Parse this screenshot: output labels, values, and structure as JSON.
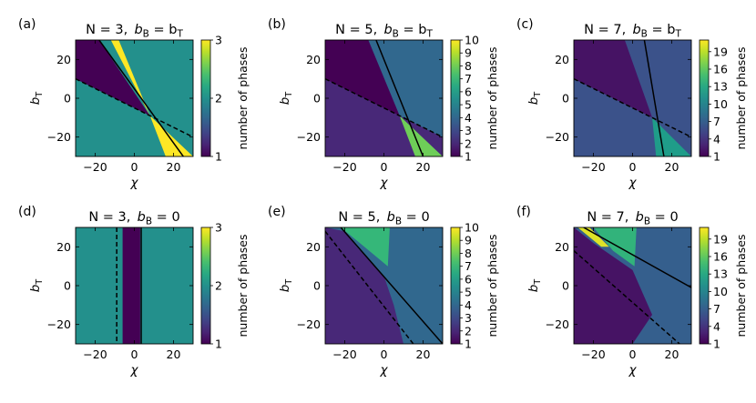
{
  "chart_data": [
    {
      "type": "heatmap",
      "panel_label": "(a)",
      "title": "N = 3,  b_B = b_T",
      "title_parts": {
        "n": "N = 3,",
        "b": "b",
        "sub1": "B",
        "eq": " = b",
        "sub2": "T"
      },
      "xlabel": "χ",
      "ylabel": "b",
      "ylabel_sub": "T",
      "xlim": [
        -30,
        30
      ],
      "ylim": [
        -30,
        30
      ],
      "xticks": [
        -20,
        0,
        20
      ],
      "yticks": [
        -20,
        0,
        20
      ],
      "colorbar": {
        "label": "number of phases",
        "min": 1,
        "max": 3,
        "ticks": [
          1,
          2,
          3
        ]
      },
      "background_value": 2,
      "regions": [
        {
          "value": 1,
          "polygon": [
            [
              -30,
              30
            ],
            [
              -18,
              30
            ],
            [
              8,
              -9
            ],
            [
              -30,
              10
            ]
          ]
        },
        {
          "value": 3,
          "polygon": [
            [
              -12,
              30
            ],
            [
              -8,
              30
            ],
            [
              8,
              -9
            ]
          ]
        },
        {
          "value": 3,
          "polygon": [
            [
              8,
              -9
            ],
            [
              16,
              -30
            ],
            [
              30,
              -30
            ]
          ]
        }
      ],
      "lines": [
        {
          "style": "solid",
          "points": [
            [
              -18,
              30
            ],
            [
              25,
              -30
            ]
          ]
        },
        {
          "style": "dashed",
          "points": [
            [
              -30,
              10
            ],
            [
              30,
              -20
            ]
          ]
        }
      ]
    },
    {
      "type": "heatmap",
      "panel_label": "(b)",
      "title": "N = 5,  b_B = b_T",
      "title_parts": {
        "n": "N = 5,",
        "b": "b",
        "sub1": "B",
        "eq": " = b",
        "sub2": "T"
      },
      "xlabel": "χ",
      "ylabel": "b",
      "ylabel_sub": "T",
      "xlim": [
        -30,
        30
      ],
      "ylim": [
        -30,
        30
      ],
      "xticks": [
        -20,
        0,
        20
      ],
      "yticks": [
        -20,
        0,
        20
      ],
      "colorbar": {
        "label": "number of phases",
        "min": 1,
        "max": 10,
        "ticks": [
          1,
          2,
          3,
          4,
          5,
          6,
          7,
          8,
          9,
          10
        ]
      },
      "background_value": 2,
      "regions": [
        {
          "value": 4,
          "polygon": [
            [
              -8,
              30
            ],
            [
              30,
              30
            ],
            [
              30,
              -20
            ],
            [
              8,
              -9
            ]
          ]
        },
        {
          "value": 1,
          "polygon": [
            [
              -30,
              30
            ],
            [
              -8,
              30
            ],
            [
              8,
              -9
            ],
            [
              -30,
              10
            ]
          ]
        },
        {
          "value": 8,
          "polygon": [
            [
              8,
              -9
            ],
            [
              16,
              -30
            ],
            [
              30,
              -30
            ]
          ]
        }
      ],
      "lines": [
        {
          "style": "solid",
          "points": [
            [
              -4,
              30
            ],
            [
              20,
              -30
            ]
          ]
        },
        {
          "style": "dashed",
          "points": [
            [
              -30,
              10
            ],
            [
              30,
              -20
            ]
          ]
        }
      ]
    },
    {
      "type": "heatmap",
      "panel_label": "(c)",
      "title": "N = 7,  b_B = b_T",
      "title_parts": {
        "n": "N = 7,",
        "b": "b",
        "sub1": "B",
        "eq": " = b",
        "sub2": "T"
      },
      "xlabel": "χ",
      "ylabel": "b",
      "ylabel_sub": "T",
      "xlim": [
        -30,
        30
      ],
      "ylim": [
        -30,
        30
      ],
      "xticks": [
        -20,
        0,
        20
      ],
      "yticks": [
        -20,
        0,
        20
      ],
      "colorbar": {
        "label": "number of phases",
        "min": 1,
        "max": 21,
        "ticks": [
          1,
          4,
          7,
          10,
          13,
          16,
          19
        ]
      },
      "background_value": 6,
      "regions": [
        {
          "value": 2,
          "polygon": [
            [
              -30,
              30
            ],
            [
              -4,
              30
            ],
            [
              10,
              -10
            ],
            [
              -30,
              10
            ]
          ]
        },
        {
          "value": 12,
          "polygon": [
            [
              10,
              -10
            ],
            [
              12,
              -30
            ],
            [
              30,
              -30
            ]
          ]
        }
      ],
      "lines": [
        {
          "style": "solid",
          "points": [
            [
              6,
              30
            ],
            [
              16,
              -30
            ]
          ]
        },
        {
          "style": "dashed",
          "points": [
            [
              -30,
              10
            ],
            [
              30,
              -20
            ]
          ]
        }
      ]
    },
    {
      "type": "heatmap",
      "panel_label": "(d)",
      "title": "N = 3,  b_B = 0",
      "title_parts": {
        "n": "N = 3,",
        "b": "b",
        "sub1": "B",
        "eq": " = 0",
        "sub2": ""
      },
      "xlabel": "χ",
      "ylabel": "b",
      "ylabel_sub": "T",
      "xlim": [
        -30,
        30
      ],
      "ylim": [
        -30,
        30
      ],
      "xticks": [
        -20,
        0,
        20
      ],
      "yticks": [
        -20,
        0,
        20
      ],
      "colorbar": {
        "label": "number of phases",
        "min": 1,
        "max": 3,
        "ticks": [
          1,
          2,
          3
        ]
      },
      "background_value": 2,
      "regions": [
        {
          "value": 1,
          "polygon": [
            [
              -6,
              30
            ],
            [
              3,
              30
            ],
            [
              3,
              -30
            ],
            [
              -6,
              -30
            ]
          ]
        }
      ],
      "lines": [
        {
          "style": "dashed",
          "points": [
            [
              -9,
              30
            ],
            [
              -9,
              -30
            ]
          ]
        },
        {
          "style": "solid",
          "points": [
            [
              3.5,
              30
            ],
            [
              3.5,
              -30
            ]
          ]
        }
      ]
    },
    {
      "type": "heatmap",
      "panel_label": "(e)",
      "title": "N = 5,  b_B = 0",
      "title_parts": {
        "n": "N = 5,",
        "b": "b",
        "sub1": "B",
        "eq": " = 0",
        "sub2": ""
      },
      "xlabel": "χ",
      "ylabel": "b",
      "ylabel_sub": "T",
      "xlim": [
        -30,
        30
      ],
      "ylim": [
        -30,
        30
      ],
      "xticks": [
        -20,
        0,
        20
      ],
      "yticks": [
        -20,
        0,
        20
      ],
      "colorbar": {
        "label": "number of phases",
        "min": 1,
        "max": 10,
        "ticks": [
          1,
          2,
          3,
          4,
          5,
          6,
          7,
          8,
          9,
          10
        ]
      },
      "background_value": 4,
      "regions": [
        {
          "value": 2,
          "polygon": [
            [
              -30,
              30
            ],
            [
              -30,
              -30
            ],
            [
              10,
              -30
            ],
            [
              5,
              -10
            ],
            [
              0,
              5
            ],
            [
              -14,
              20
            ],
            [
              -20,
              28
            ]
          ]
        },
        {
          "value": 7,
          "polygon": [
            [
              -22,
              30
            ],
            [
              3,
              30
            ],
            [
              2,
              10
            ],
            [
              -10,
              20
            ]
          ]
        }
      ],
      "lines": [
        {
          "style": "solid",
          "points": [
            [
              -22,
              30
            ],
            [
              30,
              -30
            ]
          ]
        },
        {
          "style": "dashed",
          "points": [
            [
              -30,
              28
            ],
            [
              15,
              -30
            ]
          ]
        }
      ]
    },
    {
      "type": "heatmap",
      "panel_label": "(f)",
      "title": "N = 7,  b_B = 0",
      "title_parts": {
        "n": "N = 7,",
        "b": "b",
        "sub1": "B",
        "eq": " = 0",
        "sub2": ""
      },
      "xlabel": "χ",
      "ylabel": "b",
      "ylabel_sub": "T",
      "xlim": [
        -30,
        30
      ],
      "ylim": [
        -30,
        30
      ],
      "xticks": [
        -20,
        0,
        20
      ],
      "yticks": [
        -20,
        0,
        20
      ],
      "colorbar": {
        "label": "number of phases",
        "min": 1,
        "max": 21,
        "ticks": [
          1,
          4,
          7,
          10,
          13,
          16,
          19
        ]
      },
      "background_value": 7,
      "regions": [
        {
          "value": 2,
          "polygon": [
            [
              -30,
              30
            ],
            [
              -30,
              -30
            ],
            [
              0,
              -30
            ],
            [
              10,
              -15
            ],
            [
              0,
              8
            ],
            [
              -20,
              22
            ]
          ]
        },
        {
          "value": 14,
          "polygon": [
            [
              -20,
              30
            ],
            [
              2,
              30
            ],
            [
              1,
              10
            ],
            [
              -10,
              18
            ]
          ]
        },
        {
          "value": 20,
          "polygon": [
            [
              -28,
              30
            ],
            [
              -22,
              30
            ],
            [
              -12,
              20
            ],
            [
              -16,
              20
            ]
          ]
        }
      ],
      "lines": [
        {
          "style": "solid",
          "points": [
            [
              -25,
              30
            ],
            [
              30,
              -1
            ]
          ]
        },
        {
          "style": "dashed",
          "points": [
            [
              -30,
              18
            ],
            [
              24,
              -30
            ]
          ]
        }
      ]
    }
  ]
}
